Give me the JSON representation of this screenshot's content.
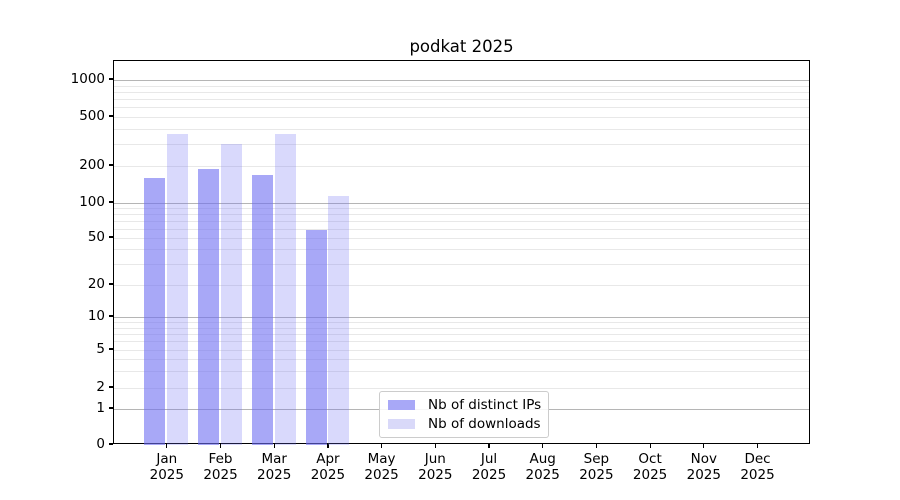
{
  "figure": {
    "title": "podkat 2025"
  },
  "chart_data": {
    "type": "bar",
    "title": "podkat 2025",
    "yscale": "symlog",
    "ylim": [
      0,
      1400
    ],
    "yticks": [
      0,
      1,
      2,
      5,
      10,
      20,
      50,
      100,
      200,
      500,
      1000
    ],
    "grid": "horizontal, major (powers of 10) + faint minors (2-9 per decade)",
    "categories": [
      "Jan 2025",
      "Feb 2025",
      "Mar 2025",
      "Apr 2025",
      "May 2025",
      "Jun 2025",
      "Jul 2025",
      "Aug 2025",
      "Sep 2025",
      "Oct 2025",
      "Nov 2025",
      "Dec 2025"
    ],
    "series": [
      {
        "name": "Nb of distinct IPs",
        "swatch_color": "#a8a8f7",
        "fill_rgba": "rgba(110,110,242,0.60)",
        "values": [
          160,
          190,
          170,
          59,
          null,
          null,
          null,
          null,
          null,
          null,
          null,
          null
        ]
      },
      {
        "name": "Nb of downloads",
        "swatch_color": "#d9d9f9",
        "fill_rgba": "rgba(110,110,242,0.26)",
        "values": [
          365,
          300,
          365,
          115,
          null,
          null,
          null,
          null,
          null,
          null,
          null,
          null
        ]
      }
    ],
    "legend": {
      "position": "lower center",
      "entries": [
        "Nb of distinct IPs",
        "Nb of downloads"
      ]
    }
  }
}
